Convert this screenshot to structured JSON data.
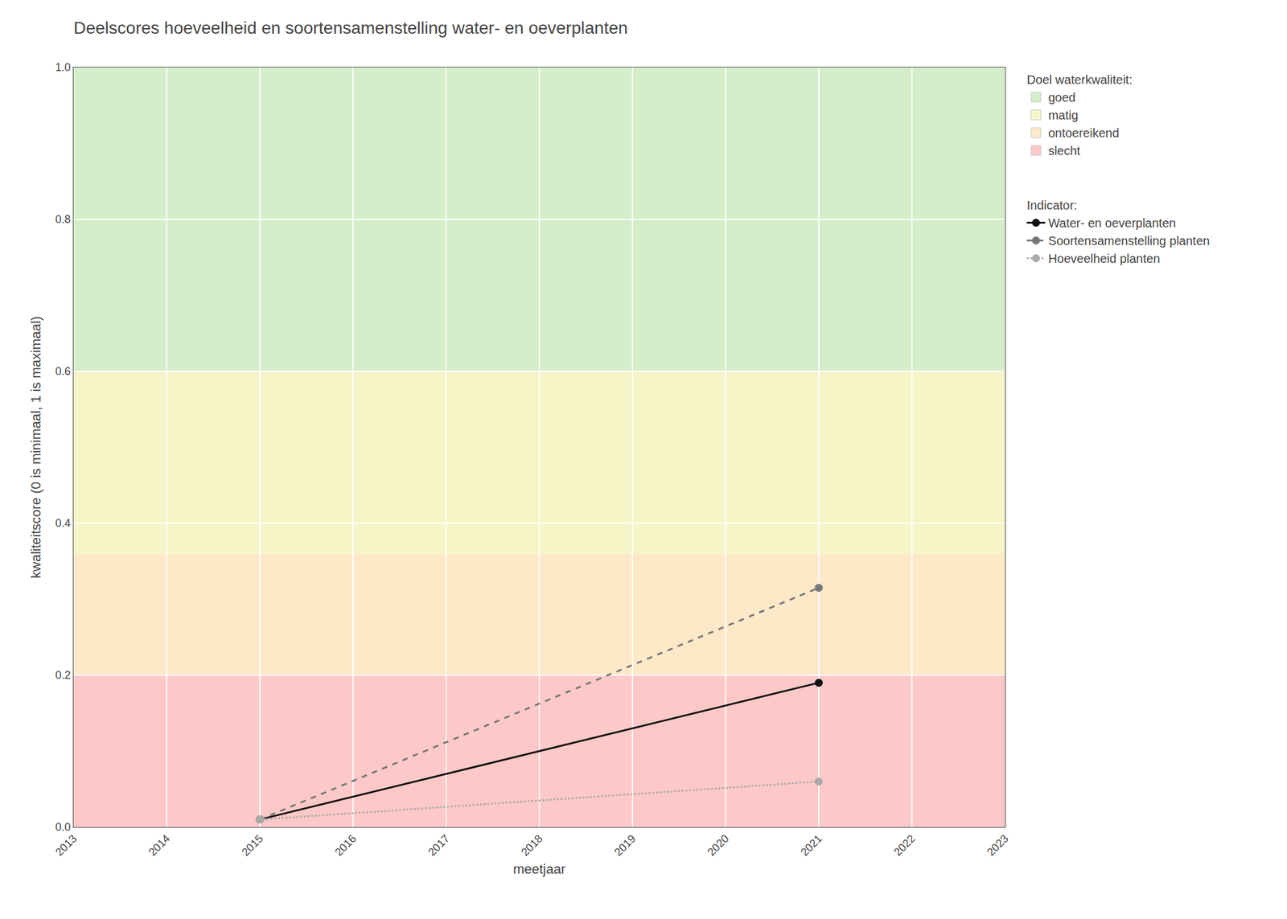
{
  "chart_data": {
    "type": "line",
    "title": "Deelscores hoeveelheid en soortensamenstelling water- en oeverplanten",
    "x_label": "meetjaar",
    "y_label": "kwaliteitscore (0 is minimaal, 1 is maximaal)",
    "xlim": [
      2013,
      2023
    ],
    "ylim": [
      0,
      1.0
    ],
    "xticks": [
      2013,
      2014,
      2015,
      2016,
      2017,
      2018,
      2019,
      2020,
      2021,
      2022,
      2023
    ],
    "yticks": [
      {
        "value": 0.0,
        "label": "0.0"
      },
      0.2,
      0.4,
      0.6,
      0.8,
      {
        "value": 1.0,
        "label": "1.0"
      }
    ],
    "grid": true,
    "legend": "right",
    "x": [
      2015,
      2021
    ],
    "legend_title": "Indicator:",
    "series": [
      {
        "name": "Water- en oeverplanten",
        "color": "#111111",
        "line_style": "solid",
        "marker": "circle",
        "values": [
          0.01,
          0.19
        ]
      },
      {
        "name": "Soortensamenstelling planten",
        "color": "#777777",
        "line_style": "dashed",
        "marker": "circle",
        "values": [
          0.01,
          0.315
        ]
      },
      {
        "name": "Hoeveelheid planten",
        "color": "#aaaaaa",
        "line_style": "dotted",
        "marker": "circle",
        "values": [
          0.01,
          0.06
        ]
      }
    ],
    "bands": {
      "title": "Doel waterkwaliteit:",
      "items": [
        {
          "name": "goed",
          "color": "#d5eeca",
          "ymin": 0.6,
          "ymax": 1.0
        },
        {
          "name": "matig",
          "color": "#f5f5c8",
          "ymin": 0.36,
          "ymax": 0.6
        },
        {
          "name": "ontoereikend",
          "color": "#fde8c8",
          "ymin": 0.2,
          "ymax": 0.36
        },
        {
          "name": "slecht",
          "color": "#fdc8c8",
          "ymin": 0.0,
          "ymax": 0.2
        }
      ]
    }
  }
}
